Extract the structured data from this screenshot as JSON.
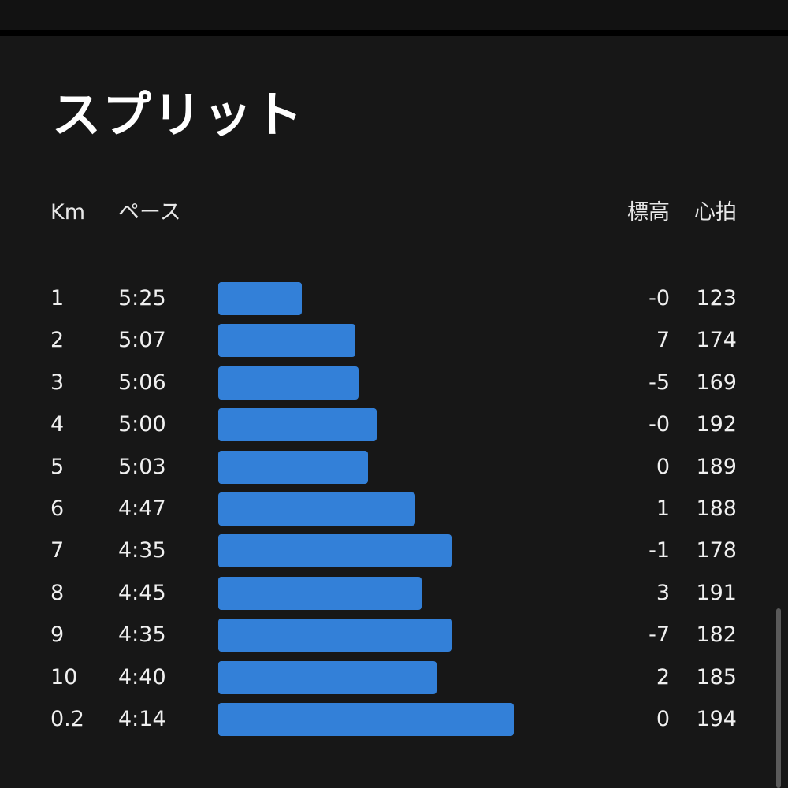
{
  "title": "スプリット",
  "columns": {
    "km": "Km",
    "pace": "ペース",
    "elevation": "標高",
    "heart_rate": "心拍"
  },
  "colors": {
    "bar": "#3380d8",
    "panel": "#171717",
    "text": "#f0f0f0"
  },
  "splits": [
    {
      "km": "1",
      "pace": "5:25",
      "pace_seconds": 325,
      "elevation": "-0",
      "heart_rate": "123"
    },
    {
      "km": "2",
      "pace": "5:07",
      "pace_seconds": 307,
      "elevation": "7",
      "heart_rate": "174"
    },
    {
      "km": "3",
      "pace": "5:06",
      "pace_seconds": 306,
      "elevation": "-5",
      "heart_rate": "169"
    },
    {
      "km": "4",
      "pace": "5:00",
      "pace_seconds": 300,
      "elevation": "-0",
      "heart_rate": "192"
    },
    {
      "km": "5",
      "pace": "5:03",
      "pace_seconds": 303,
      "elevation": "0",
      "heart_rate": "189"
    },
    {
      "km": "6",
      "pace": "4:47",
      "pace_seconds": 287,
      "elevation": "1",
      "heart_rate": "188"
    },
    {
      "km": "7",
      "pace": "4:35",
      "pace_seconds": 275,
      "elevation": "-1",
      "heart_rate": "178"
    },
    {
      "km": "8",
      "pace": "4:45",
      "pace_seconds": 285,
      "elevation": "3",
      "heart_rate": "191"
    },
    {
      "km": "9",
      "pace": "4:35",
      "pace_seconds": 275,
      "elevation": "-7",
      "heart_rate": "182"
    },
    {
      "km": "10",
      "pace": "4:40",
      "pace_seconds": 280,
      "elevation": "2",
      "heart_rate": "185"
    },
    {
      "km": "0.2",
      "pace": "4:14",
      "pace_seconds": 254,
      "elevation": "0",
      "heart_rate": "194"
    }
  ]
}
